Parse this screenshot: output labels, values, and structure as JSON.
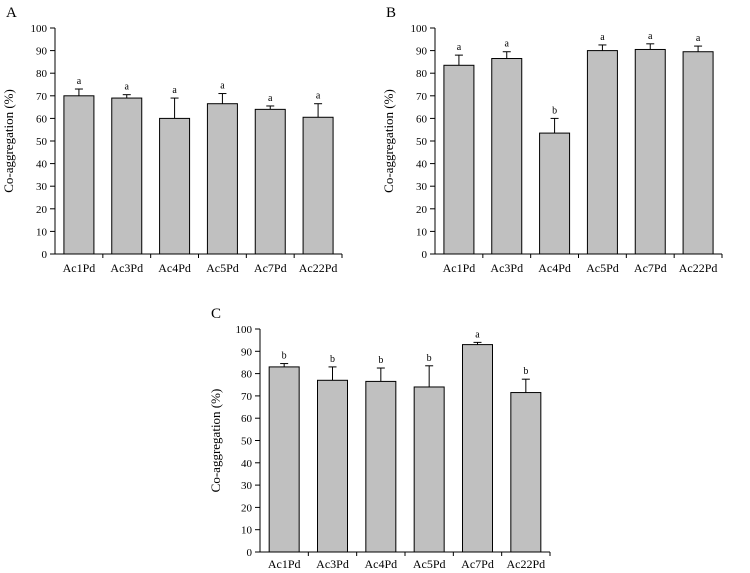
{
  "chart_data": [
    {
      "type": "bar",
      "panel": "A",
      "categories": [
        "Ac1Pd",
        "Ac3Pd",
        "Ac4Pd",
        "Ac5Pd",
        "Ac7Pd",
        "Ac22Pd"
      ],
      "values": [
        70,
        69,
        60,
        66.5,
        64,
        60.5
      ],
      "errors": [
        3,
        1.5,
        9,
        4.5,
        1.5,
        6
      ],
      "significance": [
        "a",
        "a",
        "a",
        "a",
        "a",
        "a"
      ],
      "ylabel": "Co-aggregation (%)",
      "ylim": [
        0,
        100
      ],
      "yticks": [
        0,
        10,
        20,
        30,
        40,
        50,
        60,
        70,
        80,
        90,
        100
      ],
      "grid": false,
      "bar_color": "#c0c0c0"
    },
    {
      "type": "bar",
      "panel": "B",
      "categories": [
        "Ac1Pd",
        "Ac3Pd",
        "Ac4Pd",
        "Ac5Pd",
        "Ac7Pd",
        "Ac22Pd"
      ],
      "values": [
        83.5,
        86.5,
        53.5,
        90,
        90.5,
        89.5
      ],
      "errors": [
        4.5,
        3,
        6.5,
        2.5,
        2.5,
        2.5
      ],
      "significance": [
        "a",
        "a",
        "b",
        "a",
        "a",
        "a"
      ],
      "ylabel": "Co-aggregation (%)",
      "ylim": [
        0,
        100
      ],
      "yticks": [
        0,
        10,
        20,
        30,
        40,
        50,
        60,
        70,
        80,
        90,
        100
      ],
      "grid": false,
      "bar_color": "#c0c0c0"
    },
    {
      "type": "bar",
      "panel": "C",
      "categories": [
        "Ac1Pd",
        "Ac3Pd",
        "Ac4Pd",
        "Ac5Pd",
        "Ac7Pd",
        "Ac22Pd"
      ],
      "values": [
        83,
        77,
        76.5,
        74,
        93,
        71.5
      ],
      "errors": [
        1.5,
        6,
        6,
        9.5,
        1,
        6
      ],
      "significance": [
        "b",
        "b",
        "b",
        "b",
        "a",
        "b"
      ],
      "ylabel": "Co-aggregation (%)",
      "ylim": [
        0,
        100
      ],
      "yticks": [
        0,
        10,
        20,
        30,
        40,
        50,
        60,
        70,
        80,
        90,
        100
      ],
      "grid": false,
      "bar_color": "#c0c0c0"
    }
  ]
}
